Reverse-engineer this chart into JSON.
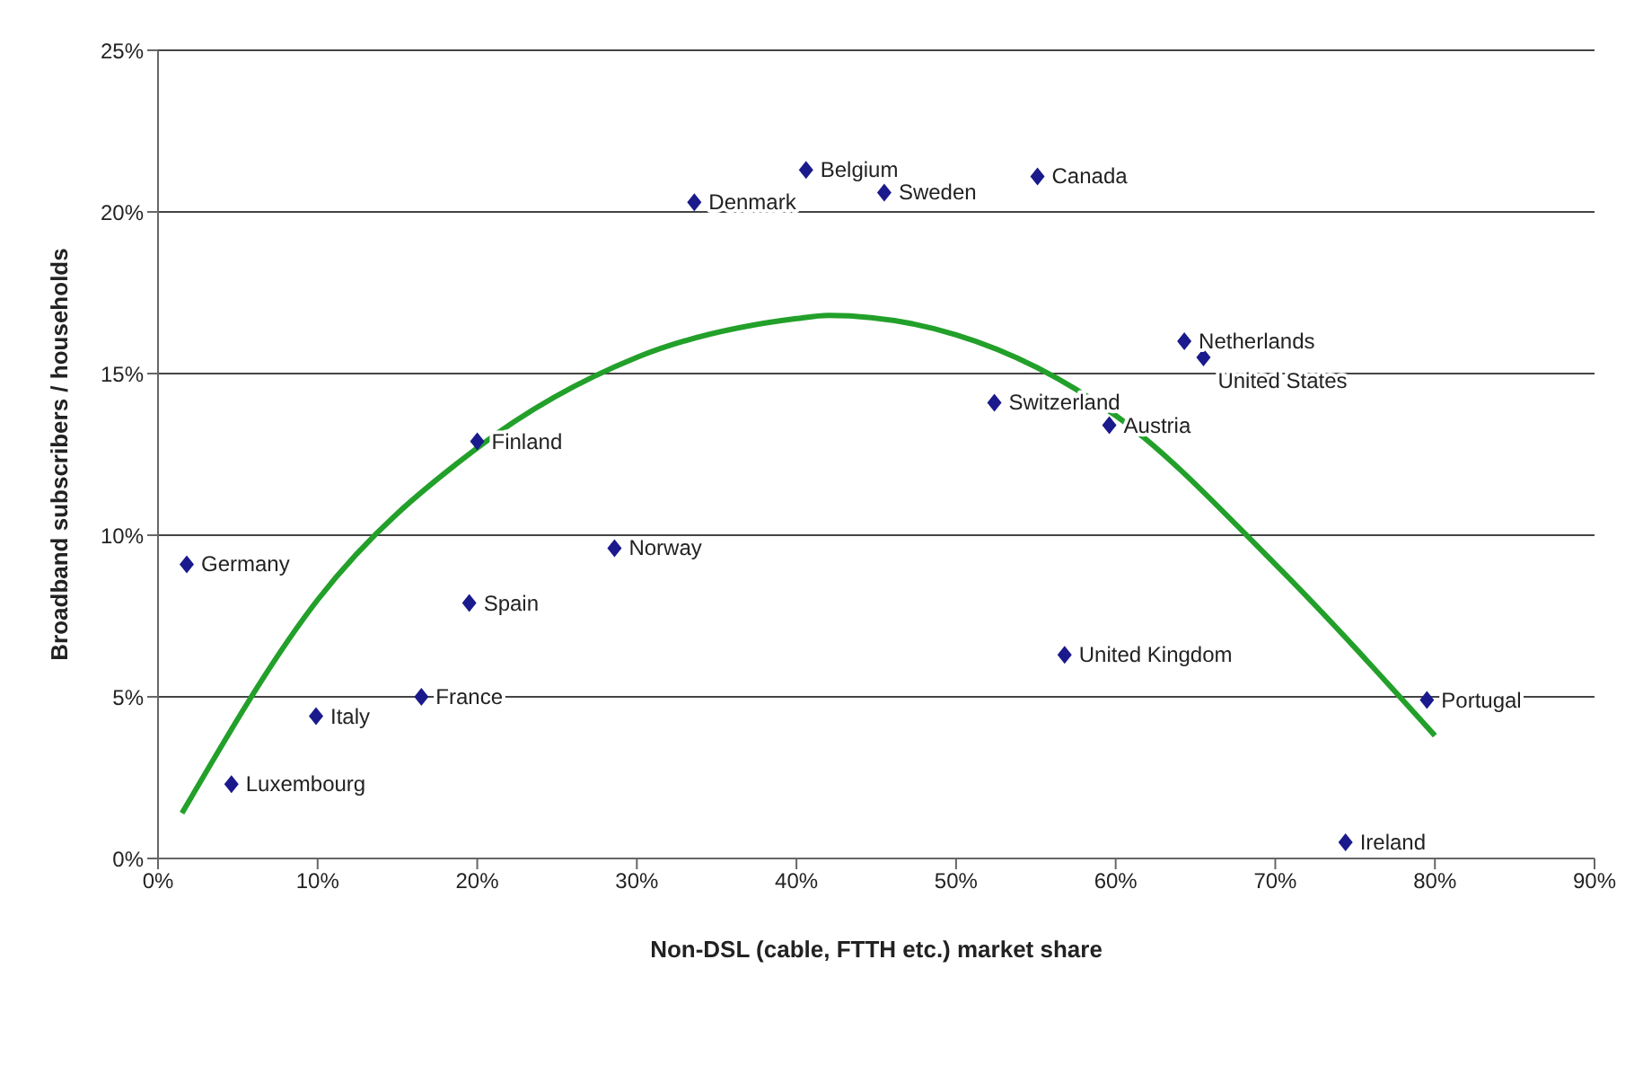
{
  "chart_data": {
    "type": "scatter",
    "xlabel": "Non-DSL (cable, FTTH etc.) market share",
    "ylabel": "Broadband subscribers / households",
    "xlim": [
      0,
      90
    ],
    "xticks": [
      {
        "value": 0,
        "label": "0%"
      },
      {
        "value": 10,
        "label": "10%"
      },
      {
        "value": 20,
        "label": "20%"
      },
      {
        "value": 30,
        "label": "30%"
      },
      {
        "value": 40,
        "label": "40%"
      },
      {
        "value": 50,
        "label": "50%"
      },
      {
        "value": 60,
        "label": "60%"
      },
      {
        "value": 70,
        "label": "70%"
      },
      {
        "value": 80,
        "label": "80%"
      },
      {
        "value": 90,
        "label": "90%"
      }
    ],
    "ylim": [
      0,
      25
    ],
    "yticks": [
      {
        "value": 0,
        "label": "0%"
      },
      {
        "value": 5,
        "label": "5%"
      },
      {
        "value": 10,
        "label": "10%"
      },
      {
        "value": 15,
        "label": "15%"
      },
      {
        "value": 20,
        "label": "20%"
      },
      {
        "value": 25,
        "label": "25%"
      }
    ],
    "grid": "y",
    "series": [
      {
        "marker": "diamond",
        "color": "#1a1a8c",
        "x": [
          1.8,
          4.6,
          9.9,
          16.5,
          19.5,
          20,
          28.6,
          33.6,
          40.6,
          45.5,
          55.1,
          52.4,
          59.6,
          64.3,
          65.5,
          56.8,
          74.4,
          79.5
        ],
        "values": [
          9.1,
          2.3,
          4.4,
          5.0,
          7.9,
          12.9,
          9.6,
          20.3,
          21.3,
          20.6,
          21.1,
          14.1,
          13.4,
          16.0,
          15.5,
          6.3,
          0.5,
          4.9
        ]
      },
      {
        "type": "line",
        "marker": "none",
        "color": "#22a02a",
        "line_style": "solid",
        "x": [
          1.5,
          10,
          20,
          30,
          40,
          42,
          50,
          60,
          70,
          80
        ],
        "values": [
          1.4,
          8.0,
          12.7,
          15.5,
          16.7,
          16.8,
          16.2,
          13.7,
          9.1,
          3.8
        ]
      }
    ],
    "annotations": [
      {
        "text": "Germany",
        "x": 1.8,
        "y": 9.1
      },
      {
        "text": "Luxembourg",
        "x": 4.6,
        "y": 2.3
      },
      {
        "text": "Italy",
        "x": 9.9,
        "y": 4.4
      },
      {
        "text": "France",
        "x": 16.5,
        "y": 5.0
      },
      {
        "text": "Spain",
        "x": 19.5,
        "y": 7.9
      },
      {
        "text": "Finland",
        "x": 20,
        "y": 12.9
      },
      {
        "text": "Norway",
        "x": 28.6,
        "y": 9.6
      },
      {
        "text": "Denmark",
        "x": 33.6,
        "y": 20.3
      },
      {
        "text": "Belgium",
        "x": 40.6,
        "y": 21.3
      },
      {
        "text": "Sweden",
        "x": 45.5,
        "y": 20.6
      },
      {
        "text": "Canada",
        "x": 55.1,
        "y": 21.1
      },
      {
        "text": "Switzerland",
        "x": 52.4,
        "y": 14.1
      },
      {
        "text": "Austria",
        "x": 59.6,
        "y": 13.4
      },
      {
        "text": "Netherlands",
        "x": 64.3,
        "y": 16.0
      },
      {
        "text": "United States",
        "x": 65.5,
        "y": 15.5
      },
      {
        "text": "United Kingdom",
        "x": 56.8,
        "y": 6.3
      },
      {
        "text": "Ireland",
        "x": 74.4,
        "y": 0.5
      },
      {
        "text": "Portugal",
        "x": 79.5,
        "y": 4.9
      }
    ]
  }
}
